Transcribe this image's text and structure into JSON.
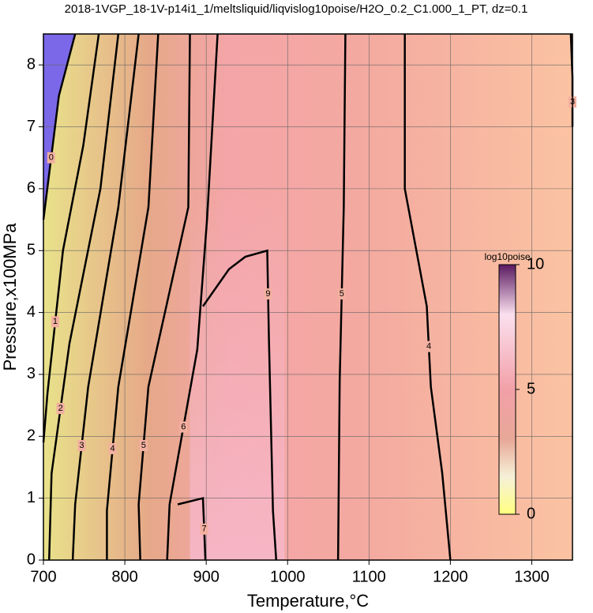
{
  "chart_data": {
    "type": "contour",
    "title": "2018-1VGP_18-1V-p14i1_1/meltsliquid/liqvislog10poise/H2O_0.2_C1.000_1_PT, dz=0.1",
    "x_label": "Temperature,°C",
    "y_label": "Pressure,x100MPa",
    "xlim": [
      700,
      1350
    ],
    "ylim": [
      0,
      8.5
    ],
    "xticks": [
      700,
      800,
      900,
      1000,
      1100,
      1200,
      1300
    ],
    "yticks": [
      0,
      1,
      2,
      3,
      4,
      5,
      6,
      7,
      8
    ],
    "grid": true,
    "contours": [
      {
        "level": 0,
        "x": [
          739,
          719,
          700
        ],
        "y": [
          8.5,
          7.5,
          5.5
        ]
      },
      {
        "level": 1,
        "x": [
          768,
          749,
          724,
          705,
          700
        ],
        "y": [
          8.5,
          6.7,
          5.0,
          2.7,
          1.9
        ]
      },
      {
        "level": 2,
        "x": [
          792,
          770,
          732,
          710,
          707
        ],
        "y": [
          8.5,
          6.0,
          3.5,
          1.4,
          0
        ]
      },
      {
        "level": 3,
        "x": [
          817,
          792,
          755,
          739,
          736
        ],
        "y": [
          8.5,
          5.7,
          2.8,
          0.9,
          0
        ]
      },
      {
        "level": 4,
        "x": [
          841,
          829,
          792,
          778,
          778
        ],
        "y": [
          8.5,
          5.7,
          2.8,
          0.8,
          0
        ]
      },
      {
        "level": 5,
        "x": [
          880,
          878,
          829,
          817,
          819
        ],
        "y": [
          8.5,
          5.7,
          2.8,
          0.9,
          0
        ]
      },
      {
        "level": 6,
        "x": [
          914,
          901,
          889,
          855,
          852
        ],
        "y": [
          8.5,
          5.5,
          3.4,
          0.9,
          0
        ]
      },
      {
        "level": 9,
        "x": [
          896,
          928,
          948,
          975,
          977,
          982,
          986
        ],
        "y": [
          4.1,
          4.7,
          4.9,
          5.0,
          3.6,
          0.8,
          0
        ]
      },
      {
        "level": 7,
        "x": [
          865,
          896,
          899
        ],
        "y": [
          0.9,
          1.0,
          0
        ]
      },
      {
        "level": 5,
        "x": [
          1071,
          1069,
          1064,
          1062
        ],
        "y": [
          8.5,
          5.7,
          2.9,
          0
        ]
      },
      {
        "level": 4,
        "x": [
          1144,
          1144,
          1171,
          1176,
          1190,
          1200
        ],
        "y": [
          8.5,
          6.0,
          4.1,
          2.8,
          1.4,
          0
        ]
      },
      {
        "level": 3,
        "x": [
          1348,
          1350,
          1350
        ],
        "y": [
          8.5,
          7.8,
          7.0
        ]
      }
    ],
    "colorbar": {
      "label": "log10poise",
      "lim": [
        0,
        10
      ],
      "ticks": [
        0,
        5,
        10
      ]
    }
  }
}
